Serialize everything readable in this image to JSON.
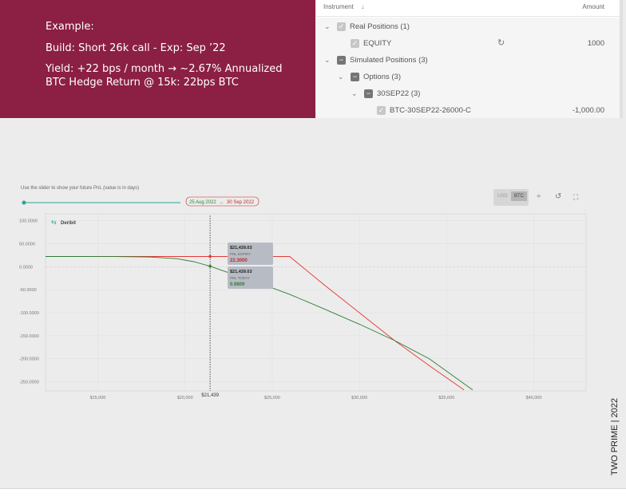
{
  "example": {
    "heading": "Example:",
    "build": "Build: Short 26k call - Exp: Sep ’22",
    "yield": "Yield: +22 bps / month → ~2.67% Annualized",
    "hedge": "BTC Hedge Return @ 15k: 22bps BTC"
  },
  "positions": {
    "col_instrument": "Instrument",
    "col_sort_icon": "arrow-down-icon",
    "col_amount": "Amount",
    "rows": [
      {
        "label": "Real Positions (1)",
        "amount": ""
      },
      {
        "label": "EQUITY",
        "amount": "1000"
      },
      {
        "label": "Simulated Positions (3)",
        "amount": ""
      },
      {
        "label": "Options (3)",
        "amount": ""
      },
      {
        "label": "30SEP22 (3)",
        "amount": ""
      },
      {
        "label": "BTC-30SEP22-26000-C",
        "amount": "-1,000.00"
      }
    ]
  },
  "chart_panel": {
    "slider_caption": "Use the slider to show your future PnL (value is in days)",
    "date_start": "25 Aug 2022",
    "date_end": "30 Sep 2022",
    "date_arrow": "→",
    "currency_usd": "USD",
    "currency_btc": "BTC",
    "brand": "Deribit",
    "crosshair_label": "$21,439",
    "tooltip_expiry": {
      "price": "$21,439.03",
      "label": "PNL EXPIRY",
      "value": "22.3000"
    },
    "tooltip_today": {
      "price": "$21,439.03",
      "label": "PNL TODAY",
      "value": "0.9809"
    }
  },
  "chart_data": {
    "type": "line",
    "title": "",
    "xlabel": "",
    "ylabel": "",
    "xlim": [
      12000,
      43000
    ],
    "ylim": [
      -270,
      115
    ],
    "x_ticks": [
      15000,
      20000,
      25000,
      30000,
      35000,
      40000
    ],
    "x_tick_labels": [
      "$15,000",
      "$20,000",
      "$25,000",
      "$30,000",
      "$35,000",
      "$40,000"
    ],
    "y_ticks": [
      100,
      50,
      0,
      -50,
      -100,
      -150,
      -200,
      -250
    ],
    "y_tick_labels": [
      "100.0000",
      "50.0000",
      "0.0000",
      "-50.0000",
      "-100.0000",
      "-150.0000",
      "-200.0000",
      "-250.0000"
    ],
    "grid": true,
    "series": [
      {
        "name": "PNL EXPIRY",
        "color": "#e53935",
        "x": [
          12000,
          15000,
          20000,
          21439,
          26000,
          28000,
          30000,
          32000,
          34000,
          36000
        ],
        "y": [
          22.3,
          22.3,
          22.3,
          22.3,
          22.3,
          -40,
          -100,
          -160,
          -215,
          -268
        ]
      },
      {
        "name": "PNL TODAY",
        "color": "#2e7d32",
        "x": [
          12000,
          14000,
          16000,
          18000,
          19500,
          20500,
          21439,
          22500,
          24000,
          26000,
          28000,
          30000,
          32000,
          34000,
          36500
        ],
        "y": [
          22.3,
          22.2,
          22.0,
          21.0,
          17.5,
          11.0,
          0.98,
          -13,
          -32,
          -60,
          -92,
          -125,
          -160,
          -200,
          -268
        ]
      }
    ]
  },
  "footer": {
    "tag": "TWO PRIME | 2022"
  },
  "colors": {
    "accent": "#8b1f44",
    "expiry": "#e53935",
    "today": "#2e7d32",
    "slider": "#26a69a"
  }
}
